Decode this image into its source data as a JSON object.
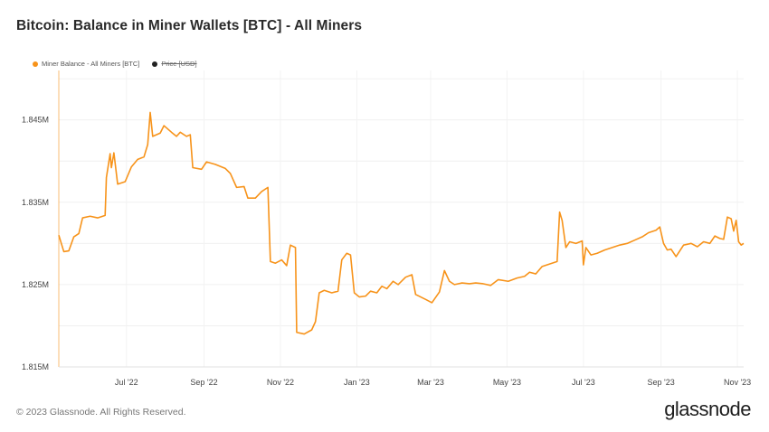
{
  "chart_data": {
    "type": "line",
    "title": "Bitcoin: Balance in Miner Wallets [BTC] - All Miners",
    "legend": [
      {
        "name": "Miner Balance - All Miners [BTC]",
        "color": "#f7931a",
        "active": true
      },
      {
        "name": "Price [USD]",
        "color": "#222222",
        "active": false
      }
    ],
    "legend_placement": "top-left",
    "grid": true,
    "y_ticks": [
      "1.815M",
      "1.825M",
      "1.835M",
      "1.845M"
    ],
    "y_tick_values": [
      1815000,
      1825000,
      1835000,
      1845000
    ],
    "ylim": [
      1815000,
      1851000
    ],
    "x_ticks": [
      "Jul '22",
      "Sep '22",
      "Nov '22",
      "Jan '23",
      "Mar '23",
      "May '23",
      "Jul '23",
      "Sep '23",
      "Nov '23"
    ],
    "x_tick_dates": [
      "2022-07-01",
      "2022-09-01",
      "2022-11-01",
      "2023-01-01",
      "2023-03-01",
      "2023-05-01",
      "2023-07-01",
      "2023-09-01",
      "2023-11-01"
    ],
    "xlim": [
      "2022-05-08",
      "2023-11-06"
    ],
    "series": [
      {
        "name": "Miner Balance - All Miners [BTC]",
        "color": "#f7931a",
        "points": [
          [
            "2022-05-08",
            1831000
          ],
          [
            "2022-05-12",
            1829000
          ],
          [
            "2022-05-16",
            1829100
          ],
          [
            "2022-05-20",
            1830800
          ],
          [
            "2022-05-24",
            1831200
          ],
          [
            "2022-05-27",
            1833100
          ],
          [
            "2022-06-02",
            1833300
          ],
          [
            "2022-06-08",
            1833100
          ],
          [
            "2022-06-14",
            1833400
          ],
          [
            "2022-06-15",
            1838000
          ],
          [
            "2022-06-18",
            1840900
          ],
          [
            "2022-06-19",
            1839200
          ],
          [
            "2022-06-21",
            1841000
          ],
          [
            "2022-06-24",
            1837200
          ],
          [
            "2022-06-30",
            1837500
          ],
          [
            "2022-07-05",
            1839300
          ],
          [
            "2022-07-10",
            1840200
          ],
          [
            "2022-07-15",
            1840500
          ],
          [
            "2022-07-18",
            1842000
          ],
          [
            "2022-07-20",
            1845900
          ],
          [
            "2022-07-22",
            1843000
          ],
          [
            "2022-07-28",
            1843400
          ],
          [
            "2022-07-31",
            1844300
          ],
          [
            "2022-08-06",
            1843500
          ],
          [
            "2022-08-10",
            1843000
          ],
          [
            "2022-08-13",
            1843500
          ],
          [
            "2022-08-18",
            1843000
          ],
          [
            "2022-08-21",
            1843200
          ],
          [
            "2022-08-23",
            1839200
          ],
          [
            "2022-08-30",
            1839000
          ],
          [
            "2022-09-03",
            1839900
          ],
          [
            "2022-09-10",
            1839600
          ],
          [
            "2022-09-18",
            1839100
          ],
          [
            "2022-09-22",
            1838500
          ],
          [
            "2022-09-27",
            1836800
          ],
          [
            "2022-10-03",
            1836900
          ],
          [
            "2022-10-06",
            1835500
          ],
          [
            "2022-10-12",
            1835500
          ],
          [
            "2022-10-17",
            1836300
          ],
          [
            "2022-10-22",
            1836800
          ],
          [
            "2022-10-24",
            1827800
          ],
          [
            "2022-10-28",
            1827600
          ],
          [
            "2022-11-02",
            1828000
          ],
          [
            "2022-11-06",
            1827300
          ],
          [
            "2022-11-09",
            1829800
          ],
          [
            "2022-11-13",
            1829500
          ],
          [
            "2022-11-14",
            1819200
          ],
          [
            "2022-11-20",
            1819000
          ],
          [
            "2022-11-26",
            1819500
          ],
          [
            "2022-11-29",
            1820500
          ],
          [
            "2022-12-02",
            1824000
          ],
          [
            "2022-12-06",
            1824300
          ],
          [
            "2022-12-12",
            1824000
          ],
          [
            "2022-12-17",
            1824200
          ],
          [
            "2022-12-20",
            1828000
          ],
          [
            "2022-12-24",
            1828800
          ],
          [
            "2022-12-27",
            1828600
          ],
          [
            "2022-12-30",
            1824000
          ],
          [
            "2023-01-03",
            1823500
          ],
          [
            "2023-01-08",
            1823600
          ],
          [
            "2023-01-12",
            1824200
          ],
          [
            "2023-01-17",
            1824000
          ],
          [
            "2023-01-21",
            1824800
          ],
          [
            "2023-01-25",
            1824500
          ],
          [
            "2023-01-30",
            1825400
          ],
          [
            "2023-02-03",
            1825000
          ],
          [
            "2023-02-09",
            1825900
          ],
          [
            "2023-02-14",
            1826200
          ],
          [
            "2023-02-17",
            1823800
          ],
          [
            "2023-02-21",
            1823500
          ],
          [
            "2023-02-25",
            1823200
          ],
          [
            "2023-03-02",
            1822800
          ],
          [
            "2023-03-08",
            1824100
          ],
          [
            "2023-03-12",
            1826700
          ],
          [
            "2023-03-16",
            1825400
          ],
          [
            "2023-03-20",
            1825000
          ],
          [
            "2023-03-26",
            1825200
          ],
          [
            "2023-04-01",
            1825100
          ],
          [
            "2023-04-06",
            1825200
          ],
          [
            "2023-04-12",
            1825100
          ],
          [
            "2023-04-18",
            1824900
          ],
          [
            "2023-04-24",
            1825600
          ],
          [
            "2023-05-02",
            1825400
          ],
          [
            "2023-05-09",
            1825800
          ],
          [
            "2023-05-15",
            1826000
          ],
          [
            "2023-05-19",
            1826500
          ],
          [
            "2023-05-24",
            1826300
          ],
          [
            "2023-05-29",
            1827200
          ],
          [
            "2023-06-04",
            1827500
          ],
          [
            "2023-06-10",
            1827800
          ],
          [
            "2023-06-12",
            1833800
          ],
          [
            "2023-06-14",
            1832800
          ],
          [
            "2023-06-17",
            1829500
          ],
          [
            "2023-06-20",
            1830200
          ],
          [
            "2023-06-25",
            1830000
          ],
          [
            "2023-06-30",
            1830300
          ],
          [
            "2023-07-01",
            1827400
          ],
          [
            "2023-07-03",
            1829500
          ],
          [
            "2023-07-07",
            1828600
          ],
          [
            "2023-07-12",
            1828800
          ],
          [
            "2023-07-18",
            1829200
          ],
          [
            "2023-07-24",
            1829500
          ],
          [
            "2023-07-30",
            1829800
          ],
          [
            "2023-08-05",
            1830000
          ],
          [
            "2023-08-11",
            1830400
          ],
          [
            "2023-08-17",
            1830800
          ],
          [
            "2023-08-22",
            1831300
          ],
          [
            "2023-08-28",
            1831600
          ],
          [
            "2023-08-31",
            1832000
          ],
          [
            "2023-09-03",
            1830000
          ],
          [
            "2023-09-06",
            1829200
          ],
          [
            "2023-09-09",
            1829300
          ],
          [
            "2023-09-13",
            1828400
          ],
          [
            "2023-09-19",
            1829800
          ],
          [
            "2023-09-25",
            1830000
          ],
          [
            "2023-09-30",
            1829600
          ],
          [
            "2023-10-05",
            1830200
          ],
          [
            "2023-10-10",
            1830000
          ],
          [
            "2023-10-14",
            1830900
          ],
          [
            "2023-10-18",
            1830600
          ],
          [
            "2023-10-21",
            1830500
          ],
          [
            "2023-10-24",
            1833200
          ],
          [
            "2023-10-27",
            1833000
          ],
          [
            "2023-10-29",
            1831500
          ],
          [
            "2023-10-31",
            1832800
          ],
          [
            "2023-11-02",
            1830200
          ],
          [
            "2023-11-04",
            1829800
          ],
          [
            "2023-11-06",
            1830000
          ]
        ]
      }
    ]
  },
  "footer": {
    "copyright": "© 2023 Glassnode. All Rights Reserved.",
    "brand": "glassnode"
  }
}
